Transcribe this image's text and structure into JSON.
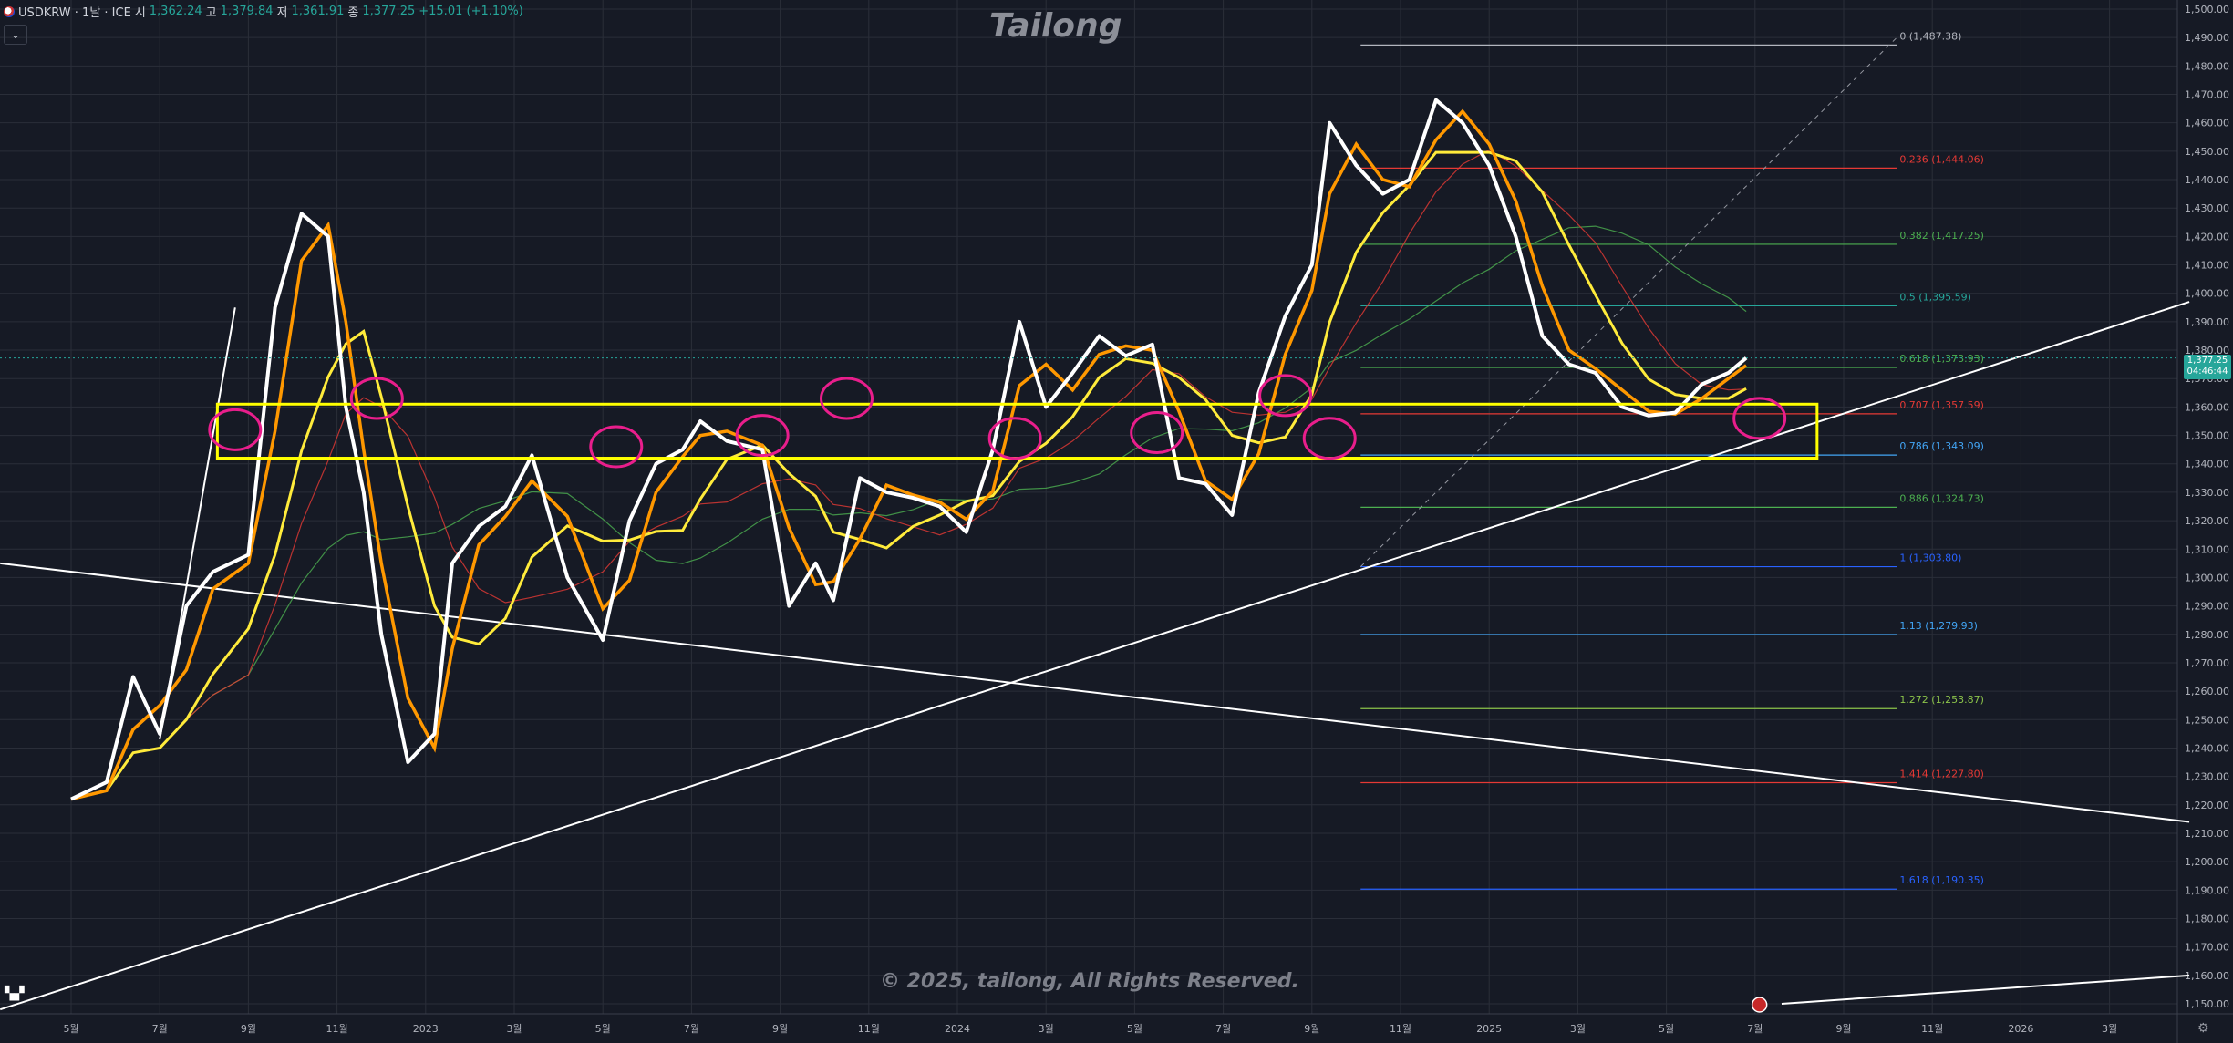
{
  "header": {
    "symbol": "USDKRW · 1날 · ICE",
    "open_label": "시",
    "open": "1,362.24",
    "high_label": "고",
    "high": "1,379.84",
    "low_label": "저",
    "low": "1,361.91",
    "close_label": "종",
    "close": "1,377.25",
    "change": "+15.01 (+1.10%)"
  },
  "watermark_title": "Tailong",
  "watermark_copyright": "© 2025, tailong, All Rights Reserved.",
  "price_tag": {
    "price": "1,377.25",
    "countdown": "04:46:44",
    "color": "#26a69a"
  },
  "colors": {
    "background": "#161a25",
    "grid": "#2a2e39",
    "price_line": "#ffffff",
    "ma_fast": "#ff9800",
    "ma_slow": "#ffeb3b",
    "ma_red": "#e53935",
    "ma_green": "#4caf50",
    "zone": "#ffff00",
    "circles": "#e91e8c"
  },
  "chart_data": {
    "type": "line",
    "title": "USDKRW · 1날 · ICE",
    "ylim": [
      1145,
      1502
    ],
    "y_ticks": [
      "1,500.00",
      "1,490.00",
      "1,480.00",
      "1,470.00",
      "1,460.00",
      "1,450.00",
      "1,440.00",
      "1,430.00",
      "1,420.00",
      "1,410.00",
      "1,400.00",
      "1,390.00",
      "1,380.00",
      "1,370.00",
      "1,360.00",
      "1,350.00",
      "1,340.00",
      "1,330.00",
      "1,320.00",
      "1,310.00",
      "1,300.00",
      "1,290.00",
      "1,280.00",
      "1,270.00",
      "1,260.00",
      "1,250.00",
      "1,240.00",
      "1,230.00",
      "1,220.00",
      "1,210.00",
      "1,200.00",
      "1,190.00",
      "1,180.00",
      "1,170.00",
      "1,160.00",
      "1,150.00"
    ],
    "x_ticks": [
      "5월",
      "7월",
      "9월",
      "11월",
      "2023",
      "3월",
      "5월",
      "7월",
      "9월",
      "11월",
      "2024",
      "3월",
      "5월",
      "7월",
      "9월",
      "11월",
      "2025",
      "3월",
      "5월",
      "7월",
      "9월",
      "11월",
      "2026",
      "3월"
    ],
    "x_tick_index": [
      0,
      1,
      2,
      3,
      4,
      5,
      6,
      7,
      8,
      9,
      10,
      11,
      12,
      13,
      14,
      15,
      16,
      17,
      18,
      19,
      20,
      21,
      22,
      23
    ],
    "series": [
      {
        "x": [
          0,
          0.4,
          0.7,
          1.0,
          1.3,
          1.6,
          2.0,
          2.3,
          2.6,
          2.9,
          3.1,
          3.3,
          3.5,
          3.8,
          4.1,
          4.3,
          4.6,
          4.9,
          5.2,
          5.6,
          6.0,
          6.3,
          6.6,
          6.9,
          7.1,
          7.4,
          7.8,
          8.1,
          8.4,
          8.6,
          8.9,
          9.2,
          9.5,
          9.8,
          10.1,
          10.4,
          10.7,
          11.0,
          11.3,
          11.6,
          11.9,
          12.2,
          12.5,
          12.8,
          13.1,
          13.4,
          13.7,
          14.0,
          14.2,
          14.5,
          14.8,
          15.1,
          15.4,
          15.7,
          16.0,
          16.3,
          16.6,
          16.9,
          17.2,
          17.5,
          17.8,
          18.1,
          18.4,
          18.7,
          18.9
        ],
        "values": [
          1222,
          1228,
          1265,
          1245,
          1290,
          1302,
          1308,
          1395,
          1428,
          1420,
          1360,
          1330,
          1280,
          1235,
          1245,
          1305,
          1318,
          1325,
          1343,
          1300,
          1278,
          1320,
          1340,
          1345,
          1355,
          1348,
          1345,
          1290,
          1305,
          1292,
          1335,
          1330,
          1328,
          1325,
          1316,
          1345,
          1390,
          1360,
          1372,
          1385,
          1378,
          1382,
          1335,
          1333,
          1322,
          1365,
          1392,
          1410,
          1460,
          1445,
          1435,
          1440,
          1468,
          1460,
          1445,
          1420,
          1385,
          1375,
          1372,
          1360,
          1357,
          1358,
          1368,
          1372,
          1377.25
        ]
      }
    ],
    "zone": {
      "top": 1361,
      "bottom": 1342
    },
    "fibonacci": [
      {
        "label": "0 (1,487.38)",
        "value": 1487.38,
        "color": "#b2b5be"
      },
      {
        "label": "0.236 (1,444.06)",
        "value": 1444.06,
        "color": "#e53935"
      },
      {
        "label": "0.382 (1,417.25)",
        "value": 1417.25,
        "color": "#4caf50"
      },
      {
        "label": "0.5 (1,395.59)",
        "value": 1395.59,
        "color": "#26a69a"
      },
      {
        "label": "0.618 (1,373.93)",
        "value": 1373.93,
        "color": "#4caf50"
      },
      {
        "label": "0.707 (1,357.59)",
        "value": 1357.59,
        "color": "#e53935"
      },
      {
        "label": "0.786 (1,343.09)",
        "value": 1343.09,
        "color": "#42a5f5"
      },
      {
        "label": "0.886 (1,324.73)",
        "value": 1324.73,
        "color": "#4caf50"
      },
      {
        "label": "1 (1,303.80)",
        "value": 1303.8,
        "color": "#2962ff"
      },
      {
        "label": "1.13 (1,279.93)",
        "value": 1279.93,
        "color": "#42a5f5"
      },
      {
        "label": "1.272 (1,253.87)",
        "value": 1253.87,
        "color": "#8bc34a"
      },
      {
        "label": "1.414 (1,227.80)",
        "value": 1227.8,
        "color": "#e53935"
      },
      {
        "label": "1.618 (1,190.35)",
        "value": 1190.35,
        "color": "#2962ff"
      }
    ],
    "fib_range_x": [
      14.55,
      20.6
    ],
    "trendlines": [
      {
        "from": [
          -0.8,
          1305
        ],
        "to": [
          23.9,
          1214
        ]
      },
      {
        "from": [
          -0.8,
          1148
        ],
        "to": [
          23.9,
          1397
        ]
      },
      {
        "from": [
          1.0,
          1243
        ],
        "to": [
          1.85,
          1395
        ]
      },
      {
        "from": [
          19.3,
          1150
        ],
        "to": [
          23.9,
          1160
        ]
      }
    ],
    "highlight_circles": [
      [
        1.85,
        1352
      ],
      [
        3.45,
        1363
      ],
      [
        6.15,
        1346
      ],
      [
        7.8,
        1350
      ],
      [
        8.75,
        1363
      ],
      [
        10.65,
        1349
      ],
      [
        12.25,
        1351
      ],
      [
        13.7,
        1364
      ],
      [
        14.2,
        1349
      ],
      [
        19.05,
        1356
      ]
    ],
    "grid": true
  }
}
